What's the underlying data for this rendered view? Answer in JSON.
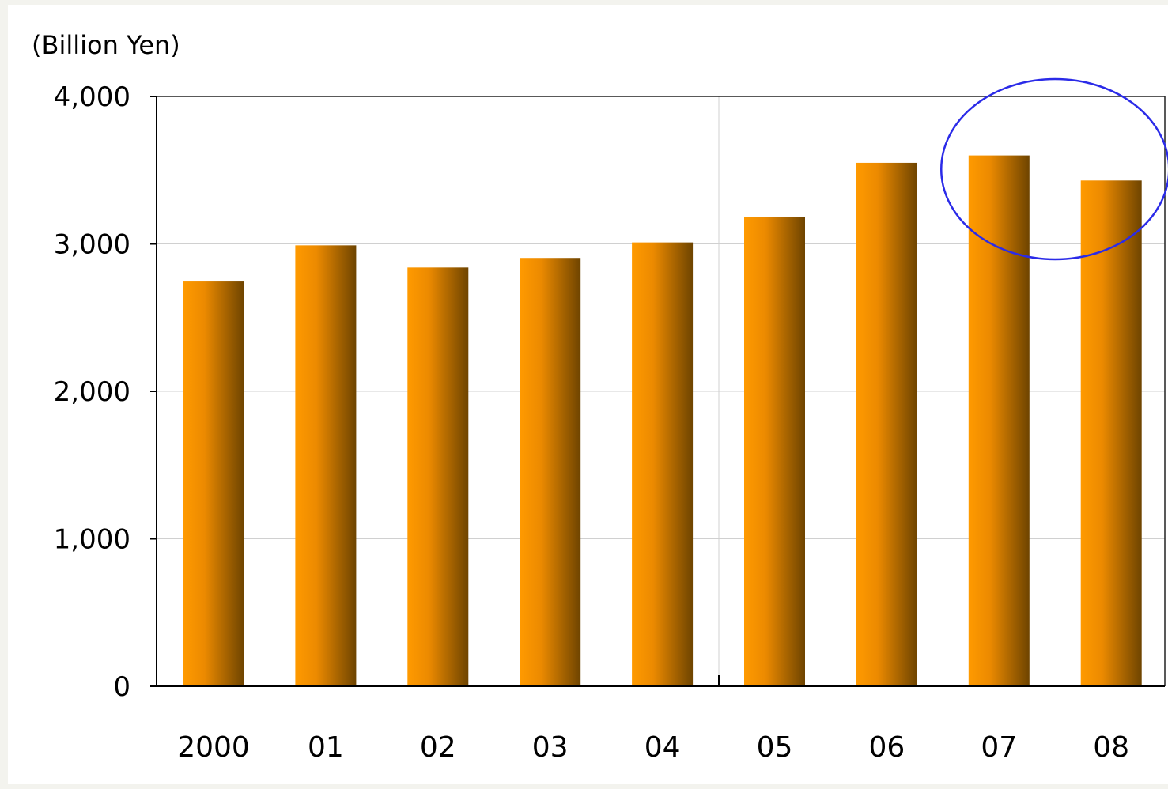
{
  "chart_data": {
    "type": "bar",
    "title": "",
    "unit_label": "(Billion Yen)",
    "xlabel": "",
    "ylabel": "",
    "categories": [
      "2000",
      "01",
      "02",
      "03",
      "04",
      "05",
      "06",
      "07",
      "08"
    ],
    "values": [
      2745,
      2990,
      2840,
      2905,
      3010,
      3185,
      3550,
      3600,
      3430
    ],
    "ylim": [
      0,
      4000
    ],
    "yticks": [
      {
        "value": 0,
        "label": "0"
      },
      {
        "value": 1000,
        "label": "1,000"
      },
      {
        "value": 2000,
        "label": "2,000"
      },
      {
        "value": 3000,
        "label": "3,000"
      },
      {
        "value": 4000,
        "label": "4,000"
      }
    ],
    "grid": true,
    "highlight": {
      "categories": [
        "07",
        "08"
      ],
      "shape": "ellipse",
      "color": "#2b2be8"
    },
    "colors": {
      "bar_light": "#ff9a00",
      "bar_dark": "#6e4400",
      "gridline": "#d0d0d0",
      "axis": "#000000",
      "text": "#000000"
    }
  }
}
